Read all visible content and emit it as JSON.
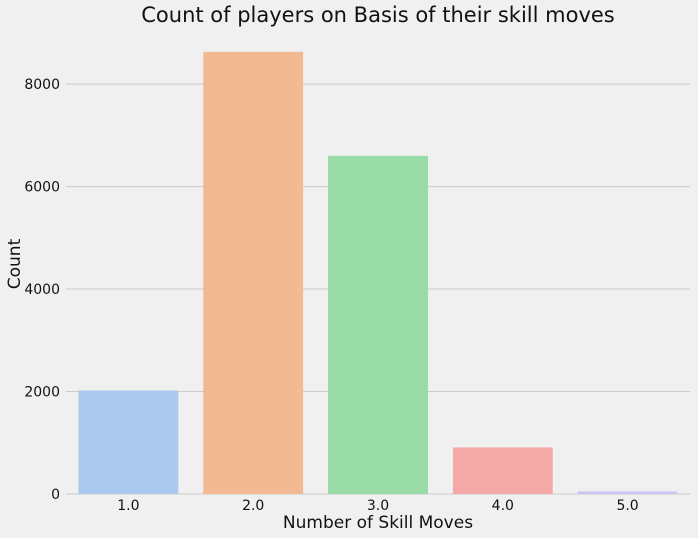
{
  "chart_data": {
    "type": "bar",
    "title": "Count of players on Basis of their skill moves",
    "xlabel": "Number of Skill Moves",
    "ylabel": "Count",
    "categories": [
      "1.0",
      "2.0",
      "3.0",
      "4.0",
      "5.0"
    ],
    "values": [
      2020,
      8630,
      6600,
      910,
      50
    ],
    "colors": [
      "#abc9ee",
      "#f2b993",
      "#98dba7",
      "#f4a9a8",
      "#c9c6f4"
    ],
    "ylim": [
      0,
      8900
    ],
    "yticks": [
      0,
      2000,
      4000,
      6000,
      8000
    ],
    "ytick_labels": [
      "0",
      "2000",
      "4000",
      "6000",
      "8000"
    ],
    "grid": "y",
    "background": "#f0f0f0"
  }
}
